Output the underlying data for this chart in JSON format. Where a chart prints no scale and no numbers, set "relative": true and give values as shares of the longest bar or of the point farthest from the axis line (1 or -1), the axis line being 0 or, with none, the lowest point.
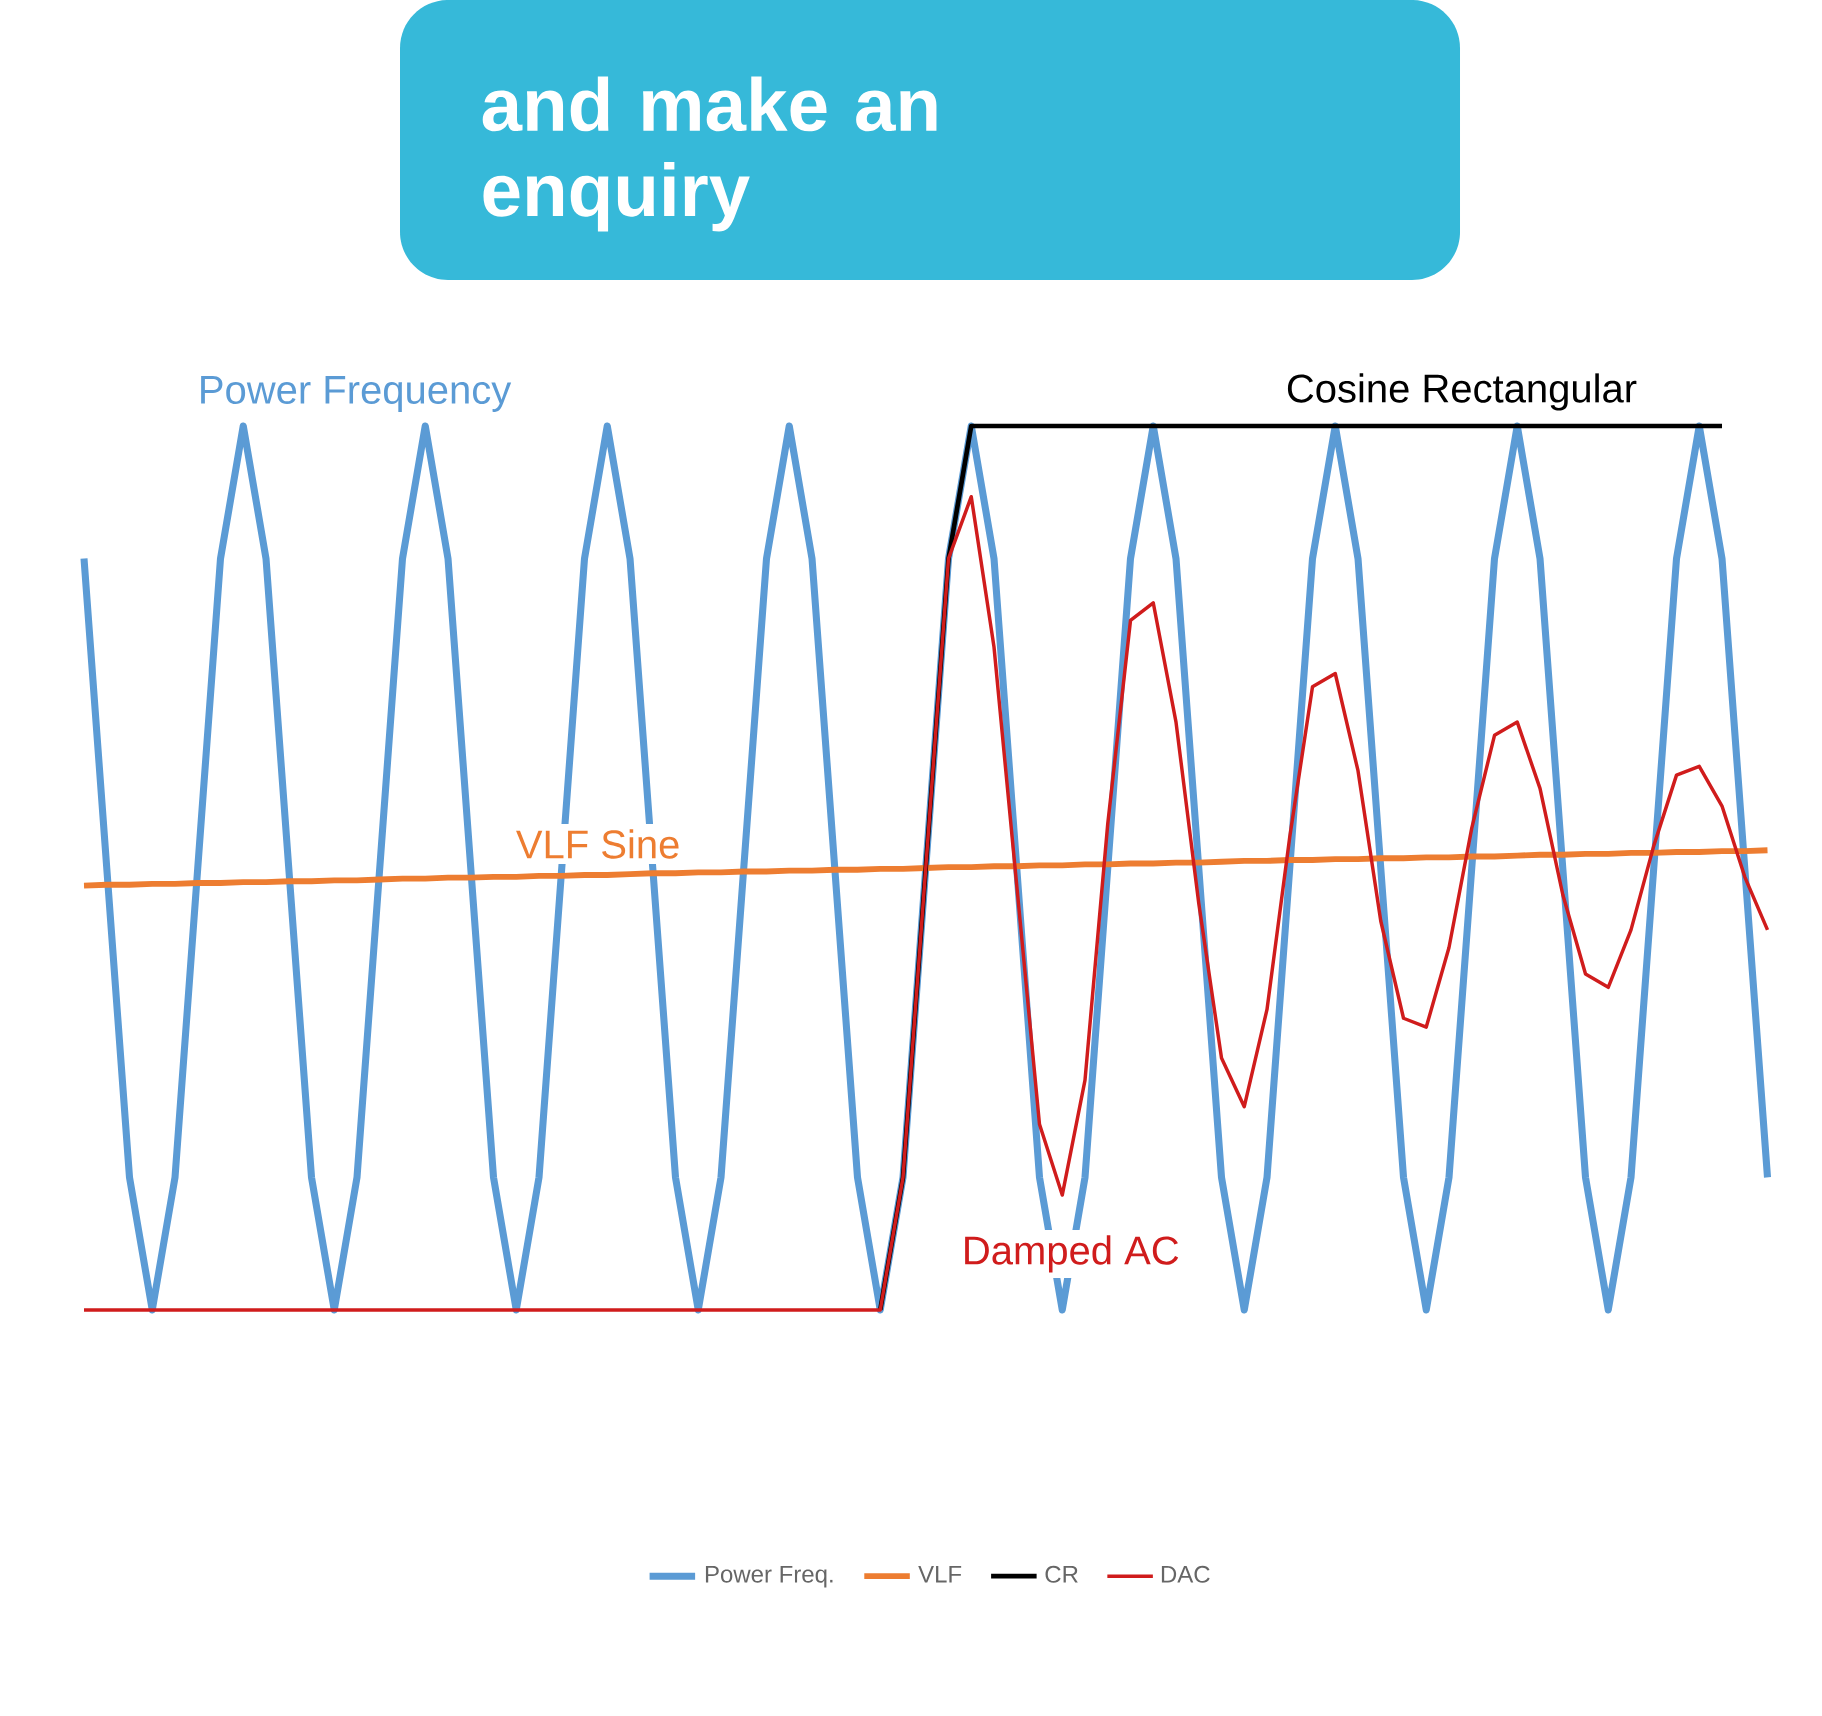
{
  "chart_data": {
    "type": "line",
    "relative": true,
    "legend": "bottom",
    "marker": "none",
    "line_style": "solid",
    "annotations": [
      "and make an enquiry",
      "Power Frequency",
      "Cosine Rectangular",
      "VLF Sine",
      "Damped AC"
    ],
    "categories": [
      null,
      null,
      null,
      null,
      null,
      null,
      null,
      null,
      null,
      null,
      null,
      null,
      null,
      null,
      null,
      null,
      null,
      null,
      null,
      null,
      null,
      null,
      null,
      null,
      null,
      null,
      null,
      null,
      null,
      null,
      null,
      null,
      null,
      null,
      null,
      null,
      null,
      null,
      null,
      null,
      null,
      null,
      null,
      null,
      null,
      null,
      null,
      null,
      null,
      null,
      null,
      null,
      null,
      null,
      null,
      null,
      null,
      null,
      null,
      null,
      null,
      null,
      null,
      null,
      null,
      null,
      null,
      null,
      null,
      null,
      null,
      null,
      null,
      null,
      null
    ],
    "series": [
      {
        "name": "Power Freq.",
        "color": "#5b9bd5",
        "values": [
          0.85,
          0.5,
          0.15,
          0,
          0.15,
          0.5,
          0.85,
          1,
          0.85,
          0.5,
          0.15,
          0,
          0.15,
          0.5,
          0.85,
          1,
          0.85,
          0.5,
          0.15,
          0,
          0.15,
          0.5,
          0.85,
          1,
          0.85,
          0.5,
          0.15,
          0,
          0.15,
          0.5,
          0.85,
          1,
          0.85,
          0.5,
          0.15,
          0,
          0.15,
          0.5,
          0.85,
          1,
          0.85,
          0.5,
          0.15,
          0,
          0.15,
          0.5,
          0.85,
          1,
          0.85,
          0.5,
          0.15,
          0,
          0.15,
          0.5,
          0.85,
          1,
          0.85,
          0.5,
          0.15,
          0,
          0.15,
          0.5,
          0.85,
          1,
          0.85,
          0.5,
          0.15,
          0,
          0.15,
          0.5,
          0.85,
          1,
          0.85,
          0.5,
          0.15
        ]
      },
      {
        "name": "VLF",
        "color": "#ed7d31",
        "values": [
          0.48,
          0.481,
          0.481,
          0.482,
          0.482,
          0.483,
          0.483,
          0.484,
          0.484,
          0.485,
          0.485,
          0.486,
          0.486,
          0.487,
          0.488,
          0.488,
          0.489,
          0.489,
          0.49,
          0.49,
          0.491,
          0.491,
          0.492,
          0.492,
          0.493,
          0.494,
          0.494,
          0.495,
          0.495,
          0.496,
          0.496,
          0.497,
          0.497,
          0.498,
          0.498,
          0.499,
          0.499,
          0.5,
          0.501,
          0.501,
          0.502,
          0.502,
          0.503,
          0.503,
          0.504,
          0.504,
          0.505,
          0.505,
          0.506,
          0.506,
          0.507,
          0.508,
          0.508,
          0.509,
          0.509,
          0.51,
          0.51,
          0.511,
          0.511,
          0.512,
          0.512,
          0.513,
          0.513,
          0.514,
          0.515,
          0.515,
          0.516,
          0.516,
          0.517,
          0.517,
          0.518,
          0.518,
          0.519,
          0.519,
          0.52
        ]
      },
      {
        "name": "CR",
        "color": "#000000",
        "values": [
          null,
          null,
          null,
          null,
          null,
          null,
          null,
          null,
          null,
          null,
          null,
          null,
          null,
          null,
          null,
          null,
          null,
          null,
          null,
          null,
          null,
          null,
          null,
          null,
          null,
          null,
          null,
          null,
          null,
          null,
          null,
          null,
          null,
          null,
          null,
          0,
          0.15,
          0.5,
          0.85,
          1,
          1,
          1,
          1,
          1,
          1,
          1,
          1,
          1,
          1,
          1,
          1,
          1,
          1,
          1,
          1,
          1,
          1,
          1,
          1,
          1,
          1,
          1,
          1,
          1,
          1,
          1,
          1,
          1,
          1,
          1,
          1,
          1,
          1,
          null,
          null
        ]
      },
      {
        "name": "DAC",
        "color": "#d01c1c",
        "values": [
          0,
          0,
          0,
          0,
          0,
          0,
          0,
          0,
          0,
          0,
          0,
          0,
          0,
          0,
          0,
          0,
          0,
          0,
          0,
          0,
          0,
          0,
          0,
          0,
          0,
          0,
          0,
          0,
          0,
          0,
          0,
          0,
          0,
          0,
          0,
          0,
          0.15,
          0.5,
          0.85,
          0.92,
          0.75,
          0.48,
          0.21,
          0.13,
          0.26,
          0.55,
          0.78,
          0.8,
          0.665,
          0.46,
          0.285,
          0.23,
          0.34,
          0.535,
          0.705,
          0.72,
          0.61,
          0.44,
          0.33,
          0.32,
          0.41,
          0.545,
          0.65,
          0.665,
          0.59,
          0.47,
          0.38,
          0.365,
          0.43,
          0.525,
          0.605,
          0.615,
          0.57,
          0.49,
          0.43
        ]
      }
    ]
  }
}
